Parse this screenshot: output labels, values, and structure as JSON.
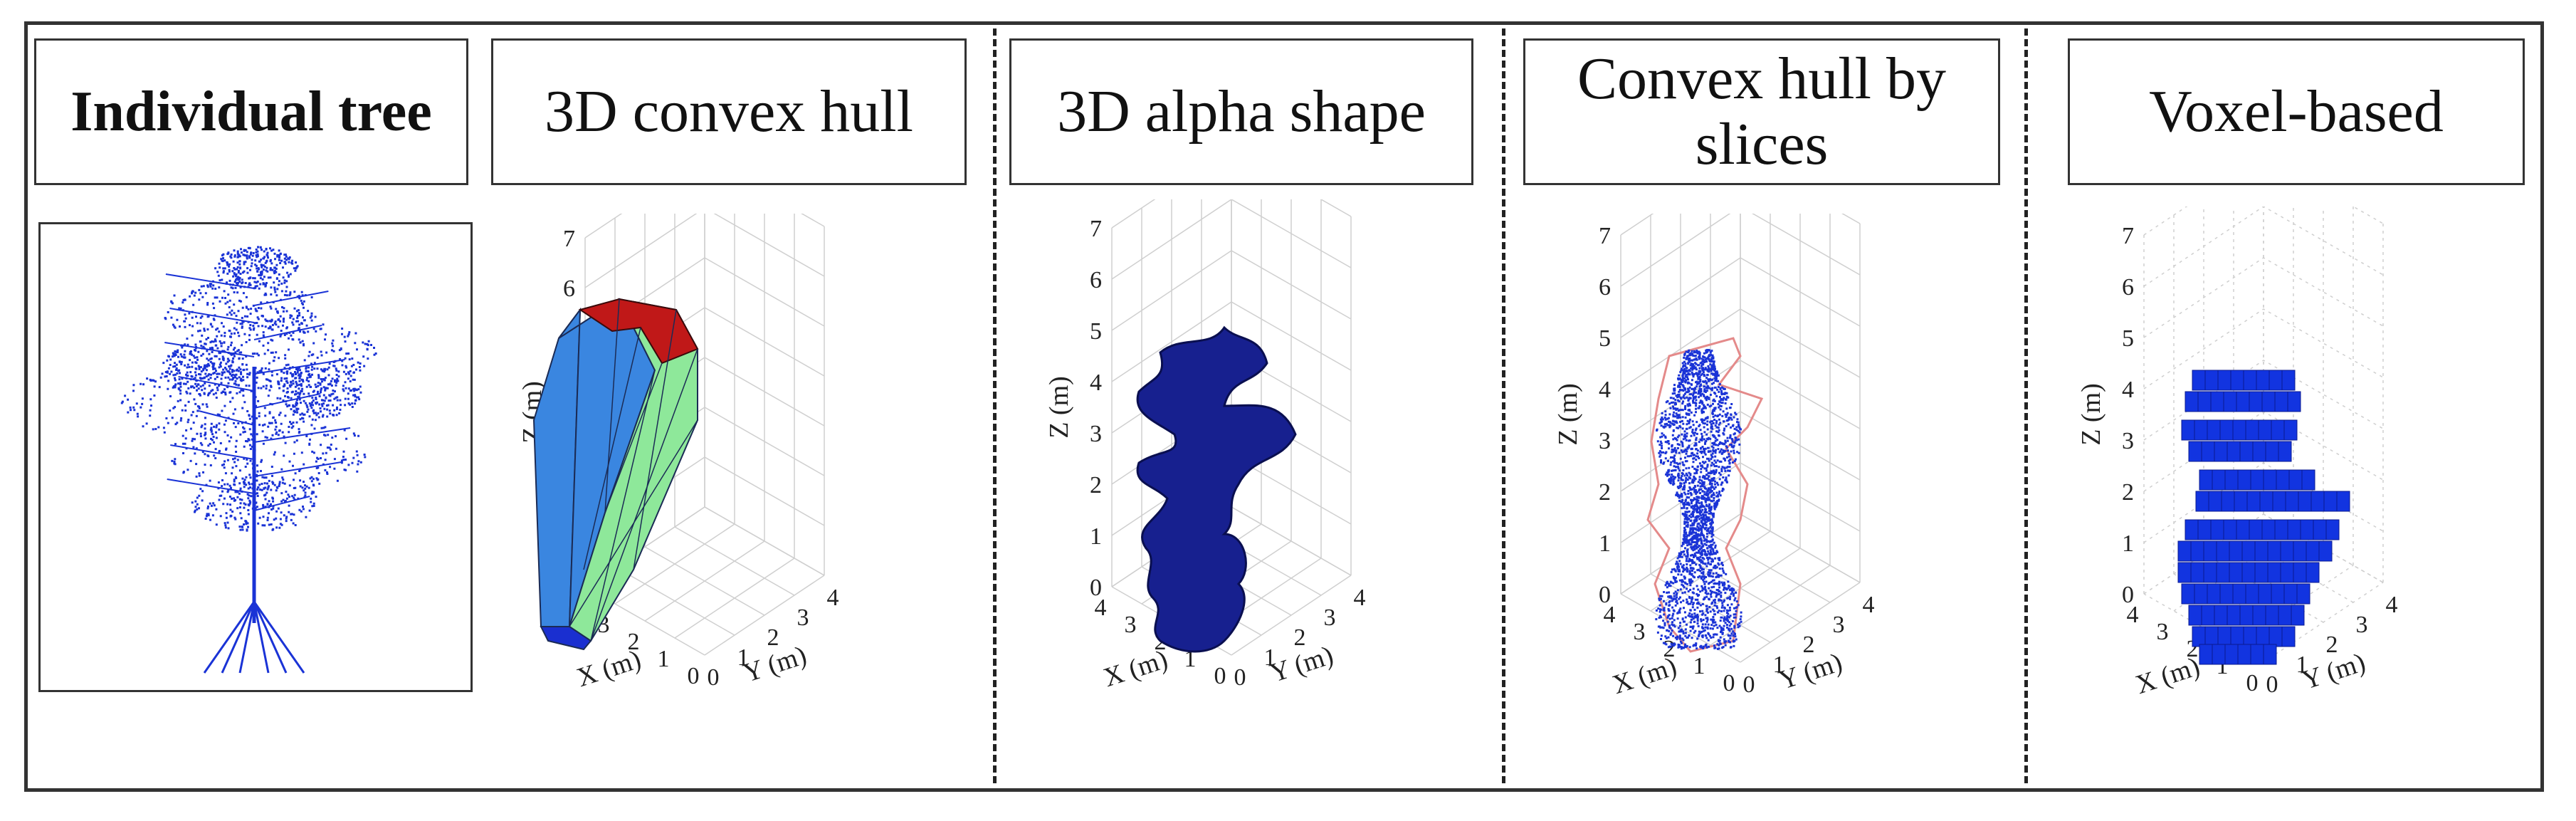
{
  "titles": {
    "individual_tree": "Individual tree",
    "convex_hull_3d": "3D convex hull",
    "alpha_shape_3d": "3D alpha shape",
    "convex_hull_slices_line1": "Convex hull by",
    "convex_hull_slices_line2": "slices",
    "voxel_based": "Voxel-based"
  },
  "axes": {
    "z_label": "Z (m)",
    "x_label": "X (m)",
    "y_label": "Y (m)",
    "z_ticks": [
      "0",
      "1",
      "2",
      "3",
      "4",
      "5",
      "6",
      "7"
    ],
    "x_ticks": [
      "0",
      "1",
      "2",
      "3",
      "4"
    ],
    "y_ticks": [
      "0",
      "1",
      "2",
      "3",
      "4"
    ]
  },
  "colors": {
    "tree_points": "#1a33d6",
    "hull_blue": "#3a86e0",
    "hull_green": "#8ee89a",
    "hull_red": "#c01818",
    "hull_dark_blue": "#1a2fd0",
    "alpha_shape": "#17208f",
    "slice_outline": "#e48a8a",
    "voxel": "#1234e0"
  }
}
